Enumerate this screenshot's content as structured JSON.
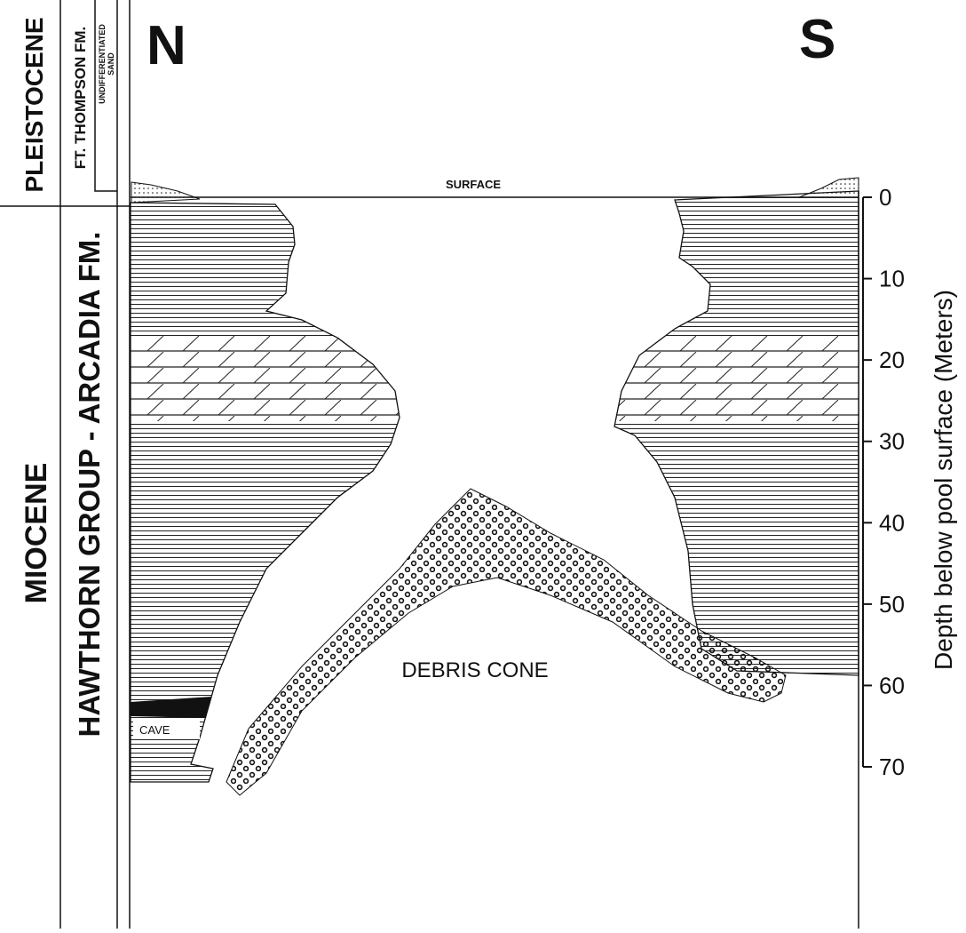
{
  "columns": {
    "epoch_upper": "PLEISTOCENE",
    "epoch_lower": "MIOCENE",
    "formation_upper": "FT. THOMPSON FM.",
    "formation_lower": "HAWTHORN GROUP - ARCADIA FM.",
    "unit_upper": [
      "UNDIFFERENTIATED",
      "SAND"
    ]
  },
  "section": {
    "north": "N",
    "south": "S",
    "surface": "SURFACE",
    "debris": "DEBRIS CONE",
    "cave": "CAVE"
  },
  "depth_axis": {
    "label": "Depth below pool surface (Meters)",
    "lim": [
      0,
      70
    ],
    "ticks": [
      0,
      10,
      20,
      30,
      40,
      50,
      60,
      70
    ]
  }
}
